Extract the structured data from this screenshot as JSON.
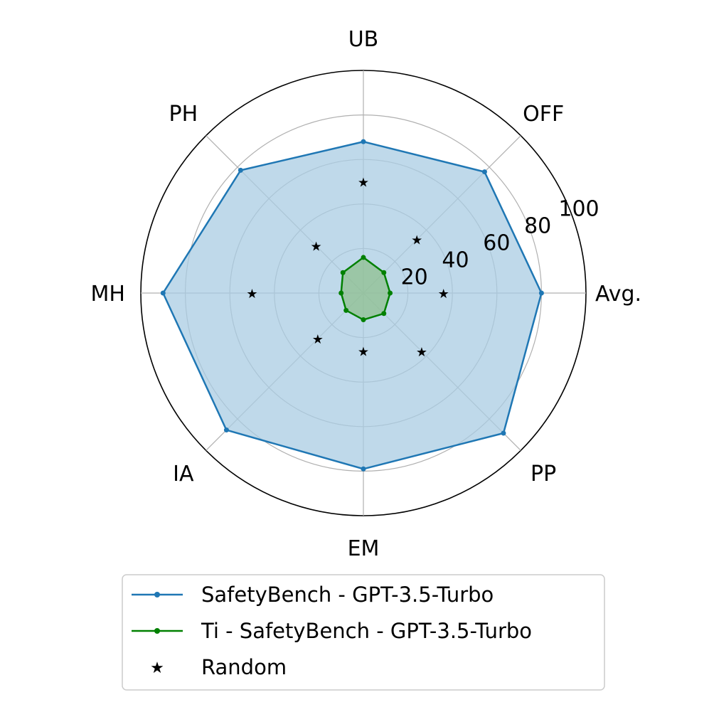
{
  "chart_data": {
    "type": "radar",
    "title": "",
    "axes": [
      "Avg.",
      "OFF",
      "UB",
      "PH",
      "MH",
      "IA",
      "EM",
      "PP"
    ],
    "r_range": [
      0,
      100
    ],
    "r_ticks": [
      "20",
      "40",
      "60",
      "80",
      "100"
    ],
    "grid": true,
    "legend_position": "bottom",
    "series": [
      {
        "name": "SafetyBench - GPT-3.5-Turbo",
        "values": [
          80,
          77,
          68,
          78,
          90,
          87,
          79,
          89
        ],
        "color": "#1f77b4",
        "fill": "#a9cce3",
        "marker": "dot"
      },
      {
        "name": "Ti - SafetyBench - GPT-3.5-Turbo",
        "values": [
          12,
          13,
          16,
          13,
          10,
          11,
          12,
          13
        ],
        "color": "#008000",
        "fill": "#8fbf8f",
        "marker": "dot"
      },
      {
        "name": "Random",
        "values": [
          36,
          34,
          50,
          30,
          50,
          29,
          26,
          37
        ],
        "color": "#ff0000",
        "marker": "star"
      }
    ]
  }
}
